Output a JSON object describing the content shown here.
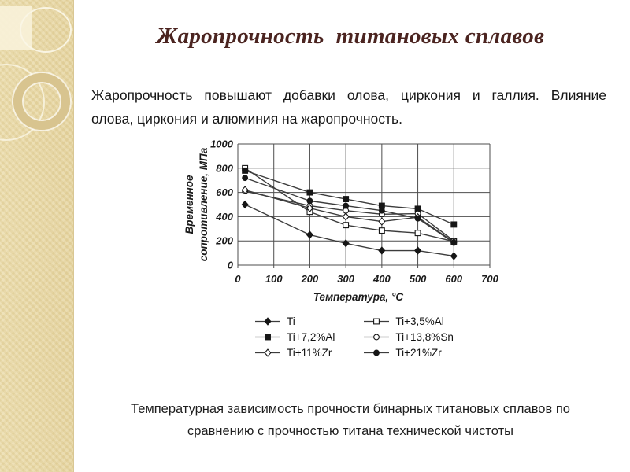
{
  "slide": {
    "title": "Жаропрочность  титановых сплавов",
    "title_color": "#4b2420",
    "body_line1": "Жаропрочность повышают добавки олова, циркония и галлия. Влияние",
    "body_line2": "олова, циркония и алюминия на жаропрочность.",
    "caption_line1": "Температурная зависимость прочности бинарных титановых сплавов по",
    "caption_line2": "сравнению с прочностью титана технической чистоты",
    "sidebar_color": "#e8d8a4"
  },
  "chart_data": {
    "type": "line",
    "x": [
      20,
      200,
      300,
      400,
      500,
      600
    ],
    "series": [
      {
        "name": "Ti",
        "marker": "diamond",
        "fill": "filled",
        "values": [
          500,
          250,
          180,
          120,
          120,
          75
        ]
      },
      {
        "name": "Ti+3,5%Al",
        "marker": "square",
        "fill": "open",
        "values": [
          800,
          440,
          330,
          285,
          265,
          195
        ]
      },
      {
        "name": "Ti+7,2%Al",
        "marker": "square",
        "fill": "filled",
        "values": [
          780,
          600,
          545,
          490,
          465,
          335
        ]
      },
      {
        "name": "Ti+13,8%Sn",
        "marker": "circle",
        "fill": "open",
        "values": [
          610,
          490,
          450,
          420,
          425,
          200
        ]
      },
      {
        "name": "Ti+11%Zr",
        "marker": "diamond",
        "fill": "open",
        "values": [
          620,
          470,
          400,
          360,
          395,
          190
        ]
      },
      {
        "name": "Ti+21%Zr",
        "marker": "circle",
        "fill": "filled",
        "values": [
          720,
          530,
          490,
          450,
          385,
          185
        ]
      }
    ],
    "xlabel": "Температура, °С",
    "ylabel_line1": "Временное",
    "ylabel_line2": "сопротивление, МПа",
    "x_ticks": [
      0,
      100,
      200,
      300,
      400,
      500,
      600,
      700
    ],
    "y_ticks": [
      0,
      200,
      400,
      600,
      800,
      1000
    ],
    "xlim": [
      0,
      700
    ],
    "ylim": [
      0,
      1000
    ],
    "grid": true,
    "line_color": "#3c3c3c",
    "grid_color": "#4e4e4e",
    "legend_position": "bottom",
    "legend_columns": [
      [
        "Ti",
        "Ti+7,2%Al",
        "Ti+11%Zr"
      ],
      [
        "Ti+3,5%Al",
        "Ti+13,8%Sn",
        "Ti+21%Zr"
      ]
    ]
  }
}
